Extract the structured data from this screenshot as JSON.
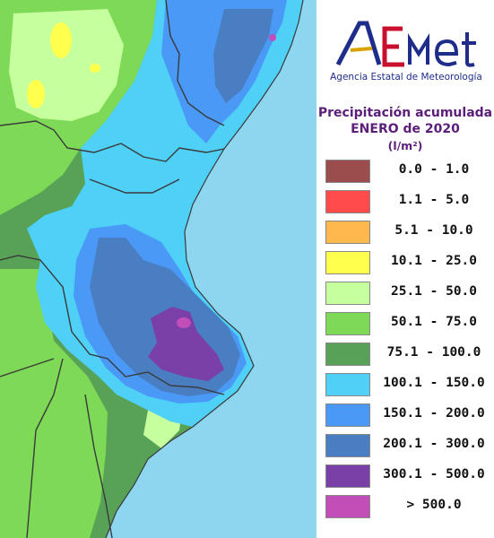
{
  "header": {
    "logo_text": "AEMet",
    "agency": "Agencia Estatal de Meteorología"
  },
  "legend": {
    "title_line1": "Precipitación acumulada",
    "title_line2": "ENERO de 2020",
    "unit": "(l/m²)",
    "items": [
      {
        "label": "0.0 - 1.0",
        "color": "#9b4d4d"
      },
      {
        "label": "1.1 - 5.0",
        "color": "#ff4b4b"
      },
      {
        "label": "5.1 - 10.0",
        "color": "#ffb84d"
      },
      {
        "label": "10.1 - 25.0",
        "color": "#ffff4d"
      },
      {
        "label": "25.1 - 50.0",
        "color": "#c6ff9e"
      },
      {
        "label": "50.1 - 75.0",
        "color": "#7ed957"
      },
      {
        "label": "75.1 - 100.0",
        "color": "#57a257"
      },
      {
        "label": "100.1 - 150.0",
        "color": "#4fd0f7"
      },
      {
        "label": "150.1 - 200.0",
        "color": "#4a99f7"
      },
      {
        "label": "200.1 - 300.0",
        "color": "#4a7ec2"
      },
      {
        "label": "300.1 - 500.0",
        "color": "#7b3fa8"
      },
      {
        "label": "> 500.0",
        "color": "#c24fb8"
      }
    ]
  },
  "map_colors": {
    "sea": "#8ed5f0",
    "range_25_50": "#c6ff9e",
    "range_10_25": "#ffff4d",
    "range_50_75": "#7ed957",
    "range_75_100": "#57a257",
    "range_100_150": "#4fd0f7",
    "range_150_200": "#4a99f7",
    "range_200_300": "#4a7ec2",
    "range_300_500": "#7b3fa8",
    "range_gt_500": "#c24fb8"
  }
}
